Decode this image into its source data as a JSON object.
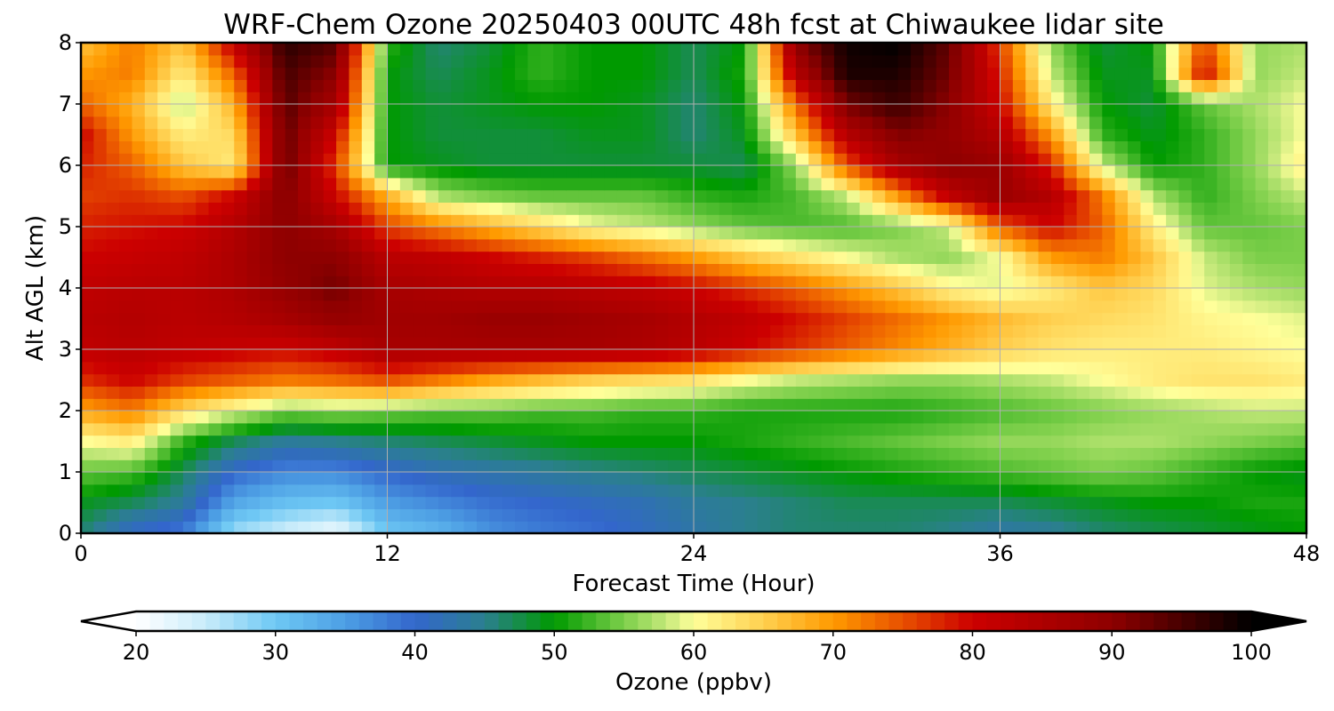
{
  "chart_data": {
    "type": "heatmap",
    "title": "WRF-Chem Ozone  20250403 00UTC 48h fcst at Chiwaukee lidar site",
    "xlabel": "Forecast Time (Hour)",
    "ylabel": "Alt AGL (km)",
    "xlim": [
      0,
      48
    ],
    "ylim": [
      0,
      8
    ],
    "x_ticks": [
      0,
      12,
      24,
      36,
      48
    ],
    "y_ticks": [
      0,
      1,
      2,
      3,
      4,
      5,
      6,
      7,
      8
    ],
    "grid": true,
    "x_hours": [
      0,
      2,
      4,
      6,
      8,
      10,
      12,
      14,
      16,
      18,
      20,
      22,
      24,
      26,
      28,
      30,
      32,
      34,
      36,
      38,
      40,
      42,
      44,
      46,
      48
    ],
    "y_km": [
      0,
      0.5,
      1,
      1.5,
      2,
      2.5,
      3,
      3.5,
      4,
      4.5,
      5,
      5.5,
      6,
      6.5,
      7,
      7.5,
      8
    ],
    "ozone_ppbv": [
      [
        46,
        40,
        38,
        27,
        24,
        21,
        30,
        32,
        36,
        38,
        39,
        41,
        43,
        45,
        46,
        46,
        46,
        45,
        43,
        44,
        46,
        47,
        48,
        49,
        50
      ],
      [
        49,
        47,
        44,
        34,
        31,
        30,
        35,
        37,
        39,
        40,
        41,
        42,
        44,
        45,
        46,
        47,
        47,
        47,
        47,
        48,
        49,
        50,
        50,
        51,
        51
      ],
      [
        54,
        53,
        47,
        40,
        37,
        37,
        40,
        42,
        43,
        44,
        45,
        46,
        47,
        48,
        49,
        50,
        51,
        52,
        53,
        54,
        55,
        54,
        52,
        50,
        49
      ],
      [
        60,
        62,
        52,
        47,
        44,
        45,
        46,
        47,
        48,
        49,
        50,
        50,
        50,
        51,
        52,
        53,
        54,
        55,
        56,
        56,
        57,
        57,
        56,
        55,
        54
      ],
      [
        69,
        72,
        64,
        59,
        55,
        56,
        55,
        54,
        54,
        53,
        53,
        52,
        52,
        51,
        51,
        51,
        51,
        52,
        53,
        54,
        55,
        56,
        57,
        58,
        58
      ],
      [
        77,
        80,
        76,
        74,
        72,
        73,
        75,
        72,
        69,
        67,
        65,
        64,
        63,
        60,
        58,
        57,
        56,
        56,
        57,
        58,
        60,
        62,
        63,
        63,
        62
      ],
      [
        82,
        83,
        82,
        81,
        80,
        82,
        86,
        86,
        86,
        86,
        86,
        85,
        83,
        80,
        77,
        74,
        71,
        68,
        65,
        63,
        62,
        62,
        62,
        61,
        60
      ],
      [
        83,
        84,
        83,
        84,
        86,
        89,
        87,
        87,
        88,
        88,
        87,
        86,
        84,
        82,
        79,
        76,
        73,
        70,
        67,
        65,
        64,
        63,
        61,
        60,
        59
      ],
      [
        82,
        83,
        83,
        85,
        89,
        92,
        86,
        85,
        84,
        84,
        83,
        82,
        80,
        77,
        74,
        70,
        66,
        61,
        59,
        62,
        66,
        64,
        59,
        57,
        56
      ],
      [
        80,
        81,
        82,
        85,
        90,
        90,
        83,
        82,
        80,
        78,
        76,
        73,
        70,
        66,
        63,
        60,
        57,
        56,
        60,
        70,
        72,
        66,
        58,
        55,
        55
      ],
      [
        78,
        79,
        80,
        84,
        90,
        86,
        76,
        72,
        68,
        64,
        60,
        58,
        56,
        54,
        53,
        53,
        55,
        58,
        74,
        80,
        74,
        62,
        54,
        54,
        55
      ],
      [
        76,
        77,
        75,
        80,
        91,
        80,
        68,
        57,
        55,
        54,
        54,
        54,
        52,
        51,
        53,
        58,
        70,
        82,
        88,
        84,
        72,
        57,
        52,
        55,
        58
      ],
      [
        78,
        74,
        66,
        62,
        93,
        76,
        50,
        49,
        48,
        48,
        48,
        48,
        48,
        47,
        56,
        75,
        86,
        90,
        88,
        78,
        58,
        50,
        52,
        56,
        62
      ],
      [
        80,
        70,
        62,
        64,
        93,
        80,
        50,
        48,
        48,
        48,
        49,
        49,
        46,
        49,
        66,
        84,
        91,
        89,
        84,
        70,
        52,
        49,
        52,
        56,
        60
      ],
      [
        74,
        68,
        57,
        68,
        94,
        86,
        50,
        48,
        49,
        50,
        50,
        49,
        46,
        50,
        73,
        92,
        96,
        90,
        80,
        62,
        50,
        48,
        54,
        57,
        60
      ],
      [
        70,
        72,
        62,
        74,
        95,
        90,
        50,
        47,
        49,
        52,
        50,
        50,
        47,
        51,
        84,
        98,
        98,
        92,
        78,
        58,
        49,
        49,
        80,
        56,
        58
      ],
      [
        66,
        72,
        66,
        82,
        97,
        94,
        52,
        46,
        48,
        52,
        50,
        50,
        47,
        50,
        90,
        99,
        100,
        93,
        76,
        56,
        48,
        50,
        76,
        56,
        57
      ]
    ],
    "colorbar": {
      "label": "Ozone  (ppbv)",
      "min": 20,
      "max": 100,
      "extend": "both",
      "ticks": [
        20,
        30,
        40,
        50,
        60,
        70,
        80,
        90,
        100
      ],
      "colormap_stops": [
        {
          "value": 20,
          "color": "#ffffff"
        },
        {
          "value": 25,
          "color": "#c8ecfa"
        },
        {
          "value": 30,
          "color": "#6ec8f4"
        },
        {
          "value": 35,
          "color": "#4d9fe4"
        },
        {
          "value": 40,
          "color": "#3366cc"
        },
        {
          "value": 45,
          "color": "#2b7f8f"
        },
        {
          "value": 50,
          "color": "#009a00"
        },
        {
          "value": 55,
          "color": "#7ccf4a"
        },
        {
          "value": 58,
          "color": "#c4e87a"
        },
        {
          "value": 60,
          "color": "#ffff9a"
        },
        {
          "value": 65,
          "color": "#ffd050"
        },
        {
          "value": 70,
          "color": "#ff9a00"
        },
        {
          "value": 75,
          "color": "#e85000"
        },
        {
          "value": 80,
          "color": "#cc0000"
        },
        {
          "value": 90,
          "color": "#8e0000"
        },
        {
          "value": 100,
          "color": "#000000"
        }
      ]
    }
  }
}
